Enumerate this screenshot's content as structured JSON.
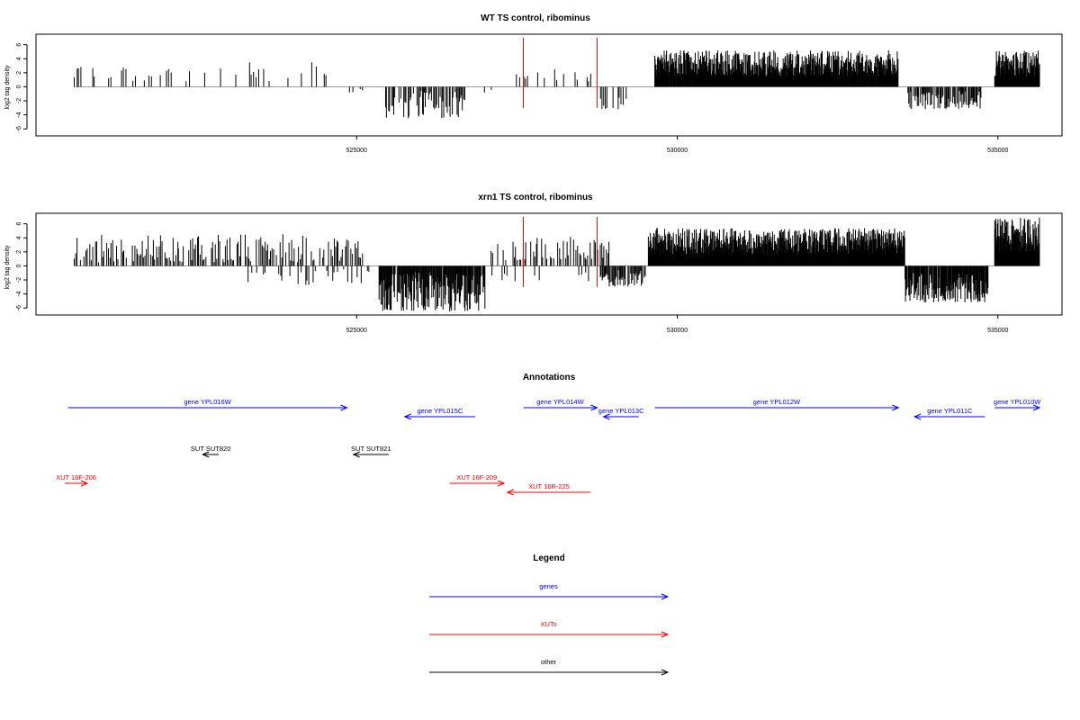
{
  "chart_data": [
    {
      "type": "bar",
      "title": "WT TS control, ribominus",
      "ylabel": "log2 tag density",
      "xlim": [
        520000,
        536000
      ],
      "ylim": [
        -7,
        7.5
      ],
      "yticks": [
        -6,
        -4,
        -2,
        0,
        2,
        4,
        6
      ],
      "xticks": [
        525000,
        530000,
        535000
      ],
      "xtick_labels": [
        "525000",
        "530000",
        "535000"
      ],
      "markers": [
        527600,
        528750
      ],
      "marker_color": "#ff0000",
      "bar_color": "#000000",
      "signal": [
        {
          "start": 520600,
          "end": 524900,
          "step": 35,
          "min": 0.8,
          "max": 3.5,
          "density": 0.35,
          "seed": 11
        },
        {
          "start": 524900,
          "end": 525100,
          "step": 40,
          "min": -1.0,
          "max": -0.3,
          "density": 0.4,
          "seed": 12
        },
        {
          "start": 525450,
          "end": 526700,
          "step": 16,
          "min": -4.5,
          "max": -0.5,
          "density": 0.85,
          "seed": 13
        },
        {
          "start": 526750,
          "end": 527450,
          "step": 50,
          "min": -1.0,
          "max": -0.3,
          "density": 0.15,
          "seed": 14
        },
        {
          "start": 527500,
          "end": 528800,
          "step": 35,
          "min": 0.8,
          "max": 2.5,
          "density": 0.45,
          "seed": 15
        },
        {
          "start": 528800,
          "end": 529200,
          "step": 25,
          "min": -3.2,
          "max": -1.0,
          "density": 0.55,
          "seed": 16
        },
        {
          "start": 529650,
          "end": 533450,
          "step": 7,
          "min": 1.5,
          "max": 5.2,
          "density": 1.0,
          "seed": 17
        },
        {
          "start": 533600,
          "end": 534750,
          "step": 14,
          "min": -3.2,
          "max": -0.6,
          "density": 0.85,
          "seed": 18
        },
        {
          "start": 534950,
          "end": 535650,
          "step": 7,
          "min": 1.5,
          "max": 5.2,
          "density": 1.0,
          "seed": 19
        }
      ]
    },
    {
      "type": "bar",
      "title": "xrn1 TS control, ribominus",
      "ylabel": "log2 tag density",
      "xlim": [
        520000,
        536000
      ],
      "ylim": [
        -7,
        7.5
      ],
      "yticks": [
        -6,
        -4,
        -2,
        0,
        2,
        4,
        6
      ],
      "xticks": [
        525000,
        530000,
        535000
      ],
      "xtick_labels": [
        "525000",
        "530000",
        "535000"
      ],
      "markers": [
        527600,
        528750
      ],
      "marker_color": "#ff0000",
      "bar_color": "#000000",
      "signal": [
        {
          "start": 520600,
          "end": 525100,
          "step": 22,
          "min": 0.5,
          "max": 4.6,
          "density": 0.7,
          "seed": 21
        },
        {
          "start": 523300,
          "end": 525200,
          "step": 30,
          "min": -2.8,
          "max": -0.5,
          "density": 0.35,
          "seed": 22
        },
        {
          "start": 525350,
          "end": 527000,
          "step": 10,
          "min": -6.5,
          "max": -0.8,
          "density": 0.95,
          "seed": 23
        },
        {
          "start": 527100,
          "end": 528950,
          "step": 20,
          "min": 0.8,
          "max": 4.2,
          "density": 0.6,
          "seed": 24
        },
        {
          "start": 527100,
          "end": 528800,
          "step": 40,
          "min": -2.2,
          "max": -0.5,
          "density": 0.3,
          "seed": 25
        },
        {
          "start": 528800,
          "end": 529500,
          "step": 14,
          "min": -3.0,
          "max": -0.6,
          "density": 0.8,
          "seed": 26
        },
        {
          "start": 529550,
          "end": 533550,
          "step": 6,
          "min": 1.5,
          "max": 5.4,
          "density": 1.0,
          "seed": 27
        },
        {
          "start": 533550,
          "end": 534850,
          "step": 9,
          "min": -5.2,
          "max": -1.0,
          "density": 0.95,
          "seed": 28
        },
        {
          "start": 534950,
          "end": 535650,
          "step": 6,
          "min": 2.0,
          "max": 7.0,
          "density": 1.0,
          "seed": 29
        }
      ]
    }
  ],
  "annotations": {
    "title": "Annotations",
    "items": [
      {
        "label": "gene YPL016W",
        "start": 520500,
        "end": 524850,
        "row": 0,
        "dir": "right",
        "color": "#0000ff"
      },
      {
        "label": "gene YPL015C",
        "start": 525750,
        "end": 526850,
        "row": 1,
        "dir": "left",
        "color": "#0000ff"
      },
      {
        "label": "gene YPL014W",
        "start": 527600,
        "end": 528750,
        "row": 0,
        "dir": "right",
        "color": "#0000ff"
      },
      {
        "label": "gene YPL013C",
        "start": 528850,
        "end": 529400,
        "row": 1,
        "dir": "left",
        "color": "#0000ff"
      },
      {
        "label": "gene YPL012W",
        "start": 529650,
        "end": 533450,
        "row": 0,
        "dir": "right",
        "color": "#0000ff"
      },
      {
        "label": "gene YPL011C",
        "start": 533700,
        "end": 534800,
        "row": 1,
        "dir": "left",
        "color": "#0000ff"
      },
      {
        "label": "gene YPL010W",
        "start": 534950,
        "end": 535650,
        "row": 0,
        "dir": "right",
        "color": "#0000ff"
      },
      {
        "label": "SUT SUT820",
        "start": 522600,
        "end": 522850,
        "row": 3,
        "dir": "left",
        "color": "#000000"
      },
      {
        "label": "SUT SUT821",
        "start": 524950,
        "end": 525500,
        "row": 3,
        "dir": "left",
        "color": "#000000"
      },
      {
        "label": "XUT 16F-206",
        "start": 520450,
        "end": 520800,
        "row": 5,
        "dir": "right",
        "color": "#ff0000"
      },
      {
        "label": "XUT 16F-209",
        "start": 526450,
        "end": 527300,
        "row": 5,
        "dir": "right",
        "color": "#ff0000"
      },
      {
        "label": "XUT 16R-225",
        "start": 527350,
        "end": 528650,
        "row": 6,
        "dir": "left",
        "color": "#ff0000"
      }
    ]
  },
  "legend": {
    "title": "Legend",
    "items": [
      {
        "label": "genes",
        "color": "#0000ff"
      },
      {
        "label": "XUTs",
        "color": "#ff0000"
      },
      {
        "label": "other",
        "color": "#000000"
      }
    ]
  }
}
